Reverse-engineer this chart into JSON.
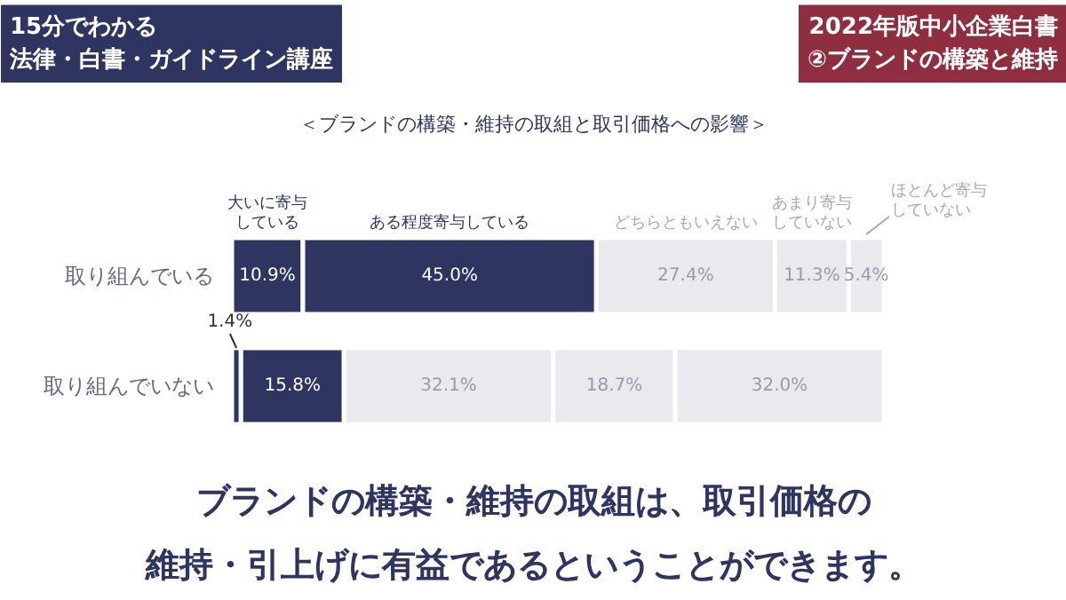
{
  "chart_data": {
    "type": "bar",
    "orientation": "horizontal",
    "stacked": true,
    "title": "＜ブランドの構築・維持の取組と取引価格への影響＞",
    "categories": [
      "取り組んでいる",
      "取り組んでいない"
    ],
    "series": [
      {
        "name": "大いに寄与している",
        "color": "#2e3560",
        "values": [
          10.9,
          1.4
        ],
        "value_labels": [
          "10.9%",
          "1.4%"
        ]
      },
      {
        "name": "ある程度寄与している",
        "color": "#2e3560",
        "values": [
          45.0,
          15.8
        ],
        "value_labels": [
          "45.0%",
          "15.8%"
        ]
      },
      {
        "name": "どちらともいえない",
        "color": "#e9e9ee",
        "values": [
          27.4,
          32.1
        ],
        "value_labels": [
          "27.4%",
          "32.1%"
        ]
      },
      {
        "name": "あまり寄与していない",
        "color": "#e9e9ee",
        "values": [
          11.3,
          18.7
        ],
        "value_labels": [
          "11.3%",
          "18.7%"
        ]
      },
      {
        "name": "ほとんど寄与していない",
        "color": "#e9e9ee",
        "values": [
          5.4,
          32.0
        ],
        "value_labels": [
          "5.4%",
          "32.0%"
        ]
      }
    ],
    "legend": "top",
    "annotations": [
      "15分でわかる法律・白書・ガイドライン講座",
      "2022年版中小企業白書②ブランドの構築と維持",
      "ブランドの構築・維持の取組は、取引価格の維持・引上げに有益であるということができます。"
    ]
  }
}
